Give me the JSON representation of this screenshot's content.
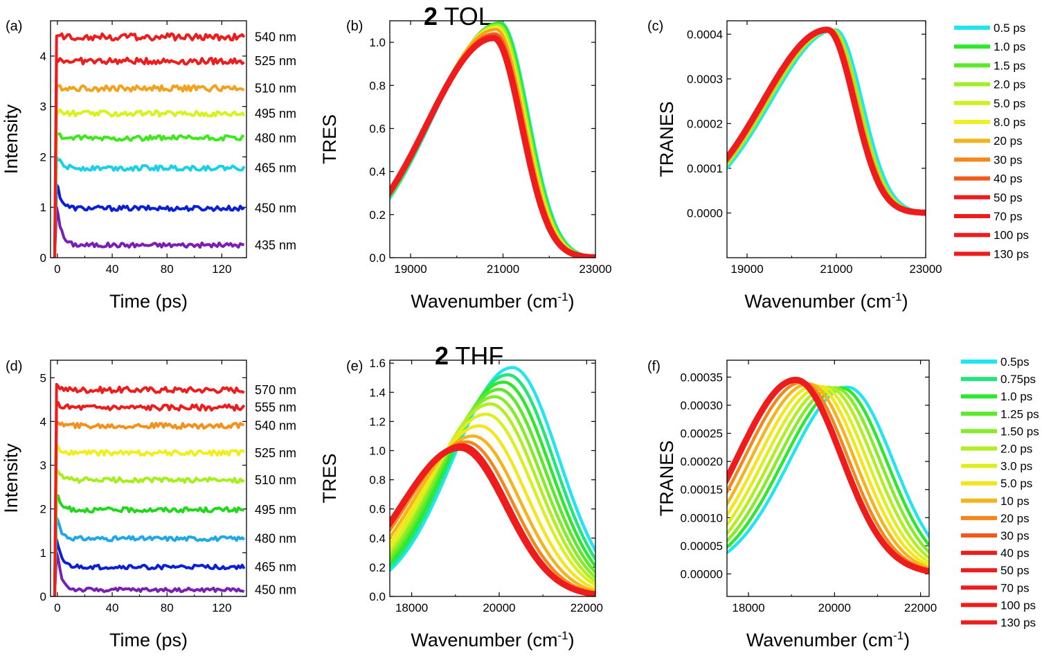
{
  "chart_data": [
    {
      "panel": "(a)",
      "type": "line",
      "xlabel": "Time (ps)",
      "ylabel": "Intensity",
      "xlim": [
        -5,
        138
      ],
      "ylim": [
        0,
        4.7
      ],
      "xticks": [
        "0",
        "40",
        "80",
        "120"
      ],
      "yticks": [
        "0",
        "1",
        "2",
        "3",
        "4"
      ],
      "series": [
        {
          "name": "435 nm",
          "color": "#7a1fb5",
          "baseline": 0.25,
          "peak": 1.0
        },
        {
          "name": "450 nm",
          "color": "#0a1fd6",
          "baseline": 0.98,
          "peak": 1.45
        },
        {
          "name": "465 nm",
          "color": "#19d1e6",
          "baseline": 1.78,
          "peak": 2.0
        },
        {
          "name": "480 nm",
          "color": "#3ee81c",
          "baseline": 2.37,
          "peak": 2.45
        },
        {
          "name": "495 nm",
          "color": "#d8f21c",
          "baseline": 2.86,
          "peak": 2.92
        },
        {
          "name": "510 nm",
          "color": "#f2a21c",
          "baseline": 3.36,
          "peak": 3.4
        },
        {
          "name": "525 nm",
          "color": "#ee1c1c",
          "baseline": 3.9,
          "peak": 3.95
        },
        {
          "name": "540 nm",
          "color": "#ee1c1c",
          "baseline": 4.38,
          "peak": 4.4
        }
      ]
    },
    {
      "panel": "(b)",
      "title_bold": "2",
      "title_rest": "TOL",
      "type": "line",
      "xlabel": "Wavenumber (cm",
      "xlabel_sup": "-1",
      "xlabel_end": ")",
      "ylabel": "TRES",
      "xlim": [
        18550,
        23000
      ],
      "ylim": [
        0,
        1.1
      ],
      "xticks": [
        "19000",
        "21000",
        "23000"
      ],
      "yticks": [
        "0.0",
        "0.2",
        "0.4",
        "0.6",
        "0.8",
        "1.0"
      ],
      "series": [
        {
          "name": "0.5 ps",
          "color": "#22e6ee",
          "peak_x": 20950,
          "amp": 1.09
        },
        {
          "name": "1.0 ps",
          "color": "#2ee82e",
          "peak_x": 20930,
          "amp": 1.09
        },
        {
          "name": "2.0 ps",
          "color": "#9ff02a",
          "peak_x": 20900,
          "amp": 1.08
        },
        {
          "name": "8.0 ps",
          "color": "#f0f020",
          "peak_x": 20870,
          "amp": 1.07
        },
        {
          "name": "20 ps",
          "color": "#f5a31c",
          "peak_x": 20850,
          "amp": 1.06
        },
        {
          "name": "40 ps",
          "color": "#f05a1c",
          "peak_x": 20830,
          "amp": 1.04
        },
        {
          "name": "130 ps",
          "color": "#ee1c1c",
          "peak_x": 20800,
          "amp": 1.02
        }
      ]
    },
    {
      "panel": "(c)",
      "type": "line",
      "xlabel": "Wavenumber (cm",
      "xlabel_sup": "-1",
      "xlabel_end": ")",
      "ylabel": "TRANES",
      "xlim": [
        18550,
        23000
      ],
      "ylim": [
        -0.0001,
        0.00043
      ],
      "xticks": [
        "19000",
        "21000",
        "23000"
      ],
      "yticks": [
        "0.0000",
        "0.0001",
        "0.0002",
        "0.0003",
        "0.0004"
      ],
      "series": [
        {
          "name": "0.5 ps",
          "color": "#22e6ee",
          "peak_x": 20980,
          "amp": 0.00041
        },
        {
          "name": "2.0 ps",
          "color": "#9ff02a",
          "peak_x": 20920,
          "amp": 0.00041
        },
        {
          "name": "20 ps",
          "color": "#f5a31c",
          "peak_x": 20860,
          "amp": 0.00041
        },
        {
          "name": "130 ps",
          "color": "#ee1c1c",
          "peak_x": 20800,
          "amp": 0.00041
        }
      ],
      "legend": [
        {
          "label": "0.5 ps",
          "color": "#22e6ee"
        },
        {
          "label": "1.0 ps",
          "color": "#2ee82e"
        },
        {
          "label": "1.5 ps",
          "color": "#5ee82a"
        },
        {
          "label": "2.0 ps",
          "color": "#9ff02a"
        },
        {
          "label": "5.0 ps",
          "color": "#cff020"
        },
        {
          "label": "8.0 ps",
          "color": "#f0f020"
        },
        {
          "label": "20 ps",
          "color": "#f5b41c"
        },
        {
          "label": "30 ps",
          "color": "#f5861c"
        },
        {
          "label": "40 ps",
          "color": "#f05a1c"
        },
        {
          "label": "50 ps",
          "color": "#ee1c1c"
        },
        {
          "label": "70 ps",
          "color": "#ee1c1c"
        },
        {
          "label": "100 ps",
          "color": "#ee1c1c"
        },
        {
          "label": "130 ps",
          "color": "#ee1c1c"
        }
      ]
    },
    {
      "panel": "(d)",
      "type": "line",
      "xlabel": "Time (ps)",
      "ylabel": "Intensity",
      "xlim": [
        -5,
        138
      ],
      "ylim": [
        0,
        5.4
      ],
      "xticks": [
        "0",
        "40",
        "80",
        "120"
      ],
      "yticks": [
        "0",
        "1",
        "2",
        "3",
        "4",
        "5"
      ],
      "series": [
        {
          "name": "450 nm",
          "color": "#7a1fb5",
          "baseline": 0.15,
          "peak": 1.0
        },
        {
          "name": "465 nm",
          "color": "#0a1fd6",
          "baseline": 0.67,
          "peak": 1.3
        },
        {
          "name": "480 nm",
          "color": "#1ea8e6",
          "baseline": 1.32,
          "peak": 1.8
        },
        {
          "name": "495 nm",
          "color": "#22d81c",
          "baseline": 1.98,
          "peak": 2.3
        },
        {
          "name": "510 nm",
          "color": "#a6ee1c",
          "baseline": 2.66,
          "peak": 2.9
        },
        {
          "name": "525 nm",
          "color": "#f2ee1c",
          "baseline": 3.28,
          "peak": 3.4
        },
        {
          "name": "540 nm",
          "color": "#f2921c",
          "baseline": 3.9,
          "peak": 4.0
        },
        {
          "name": "555 nm",
          "color": "#ee1c1c",
          "baseline": 4.32,
          "peak": 4.4
        },
        {
          "name": "570 nm",
          "color": "#ee1c1c",
          "baseline": 4.72,
          "peak": 4.85
        }
      ]
    },
    {
      "panel": "(e)",
      "title_bold": "2",
      "title_rest": "THF",
      "type": "line",
      "xlabel": "Wavenumber (cm",
      "xlabel_sup": "-1",
      "xlabel_end": ")",
      "ylabel": "TRES",
      "xlim": [
        17500,
        22200
      ],
      "ylim": [
        0,
        1.62
      ],
      "xticks": [
        "18000",
        "20000",
        "22000"
      ],
      "yticks": [
        "0.0",
        "0.2",
        "0.4",
        "0.6",
        "0.8",
        "1.0",
        "1.2",
        "1.4",
        "1.6"
      ],
      "series": [
        {
          "name": "0.5ps",
          "color": "#22e6ee",
          "peak_x": 20300,
          "amp": 1.57
        },
        {
          "name": "0.75ps",
          "color": "#22e67a",
          "peak_x": 20200,
          "amp": 1.52
        },
        {
          "name": "1.0 ps",
          "color": "#2ee82e",
          "peak_x": 20100,
          "amp": 1.47
        },
        {
          "name": "1.25 ps",
          "color": "#5ee82a",
          "peak_x": 20000,
          "amp": 1.42
        },
        {
          "name": "1.50 ps",
          "color": "#86ec2a",
          "peak_x": 19900,
          "amp": 1.37
        },
        {
          "name": "2.0 ps",
          "color": "#b2ee22",
          "peak_x": 19800,
          "amp": 1.32
        },
        {
          "name": "3.0 ps",
          "color": "#dcf020",
          "peak_x": 19700,
          "amp": 1.25
        },
        {
          "name": "5.0 ps",
          "color": "#f5e61c",
          "peak_x": 19550,
          "amp": 1.17
        },
        {
          "name": "10 ps",
          "color": "#f5b41c",
          "peak_x": 19400,
          "amp": 1.1
        },
        {
          "name": "20 ps",
          "color": "#f5861c",
          "peak_x": 19250,
          "amp": 1.06
        },
        {
          "name": "40 ps",
          "color": "#ee1c1c",
          "peak_x": 19150,
          "amp": 1.04
        },
        {
          "name": "130 ps",
          "color": "#ee1c1c",
          "peak_x": 19100,
          "amp": 1.02
        }
      ]
    },
    {
      "panel": "(f)",
      "type": "line",
      "xlabel": "Wavenumber (cm",
      "xlabel_sup": "-1",
      "xlabel_end": ")",
      "ylabel": "TRANES",
      "xlim": [
        17500,
        22200
      ],
      "ylim": [
        -4e-05,
        0.00038
      ],
      "xticks": [
        "18000",
        "20000",
        "22000"
      ],
      "yticks": [
        "0.00000",
        "0.00005",
        "0.00010",
        "0.00015",
        "0.00020",
        "0.00025",
        "0.00030",
        "0.00035"
      ],
      "series": [
        {
          "name": "0.5ps",
          "color": "#22e6ee",
          "peak_x": 20300,
          "amp": 0.000332
        },
        {
          "name": "1.0 ps",
          "color": "#2ee82e",
          "peak_x": 20150,
          "amp": 0.000331
        },
        {
          "name": "1.50 ps",
          "color": "#86ec2a",
          "peak_x": 20000,
          "amp": 0.000331
        },
        {
          "name": "2.0 ps",
          "color": "#b2ee22",
          "peak_x": 19850,
          "amp": 0.000332
        },
        {
          "name": "3.0 ps",
          "color": "#dcf020",
          "peak_x": 19700,
          "amp": 0.000333
        },
        {
          "name": "5.0 ps",
          "color": "#f5e61c",
          "peak_x": 19550,
          "amp": 0.000335
        },
        {
          "name": "10 ps",
          "color": "#f5b41c",
          "peak_x": 19400,
          "amp": 0.000338
        },
        {
          "name": "20 ps",
          "color": "#f5861c",
          "peak_x": 19250,
          "amp": 0.000341
        },
        {
          "name": "130 ps",
          "color": "#ee1c1c",
          "peak_x": 19100,
          "amp": 0.000345
        }
      ],
      "legend": [
        {
          "label": "0.5ps",
          "color": "#22e6ee"
        },
        {
          "label": "0.75ps",
          "color": "#22e67a"
        },
        {
          "label": "1.0 ps",
          "color": "#2ee82e"
        },
        {
          "label": "1.25 ps",
          "color": "#5ee82a"
        },
        {
          "label": "1.50 ps",
          "color": "#86ec2a"
        },
        {
          "label": "2.0 ps",
          "color": "#b2ee22"
        },
        {
          "label": "3.0 ps",
          "color": "#dcf020"
        },
        {
          "label": "5.0 ps",
          "color": "#f5e61c"
        },
        {
          "label": "10 ps",
          "color": "#f5b41c"
        },
        {
          "label": "20 ps",
          "color": "#f5861c"
        },
        {
          "label": "30 ps",
          "color": "#f05a1c"
        },
        {
          "label": "40 ps",
          "color": "#ee1c1c"
        },
        {
          "label": "50 ps",
          "color": "#ee1c1c"
        },
        {
          "label": "70 ps",
          "color": "#ee1c1c"
        },
        {
          "label": "100 ps",
          "color": "#ee1c1c"
        },
        {
          "label": "130 ps",
          "color": "#ee1c1c"
        }
      ]
    }
  ]
}
